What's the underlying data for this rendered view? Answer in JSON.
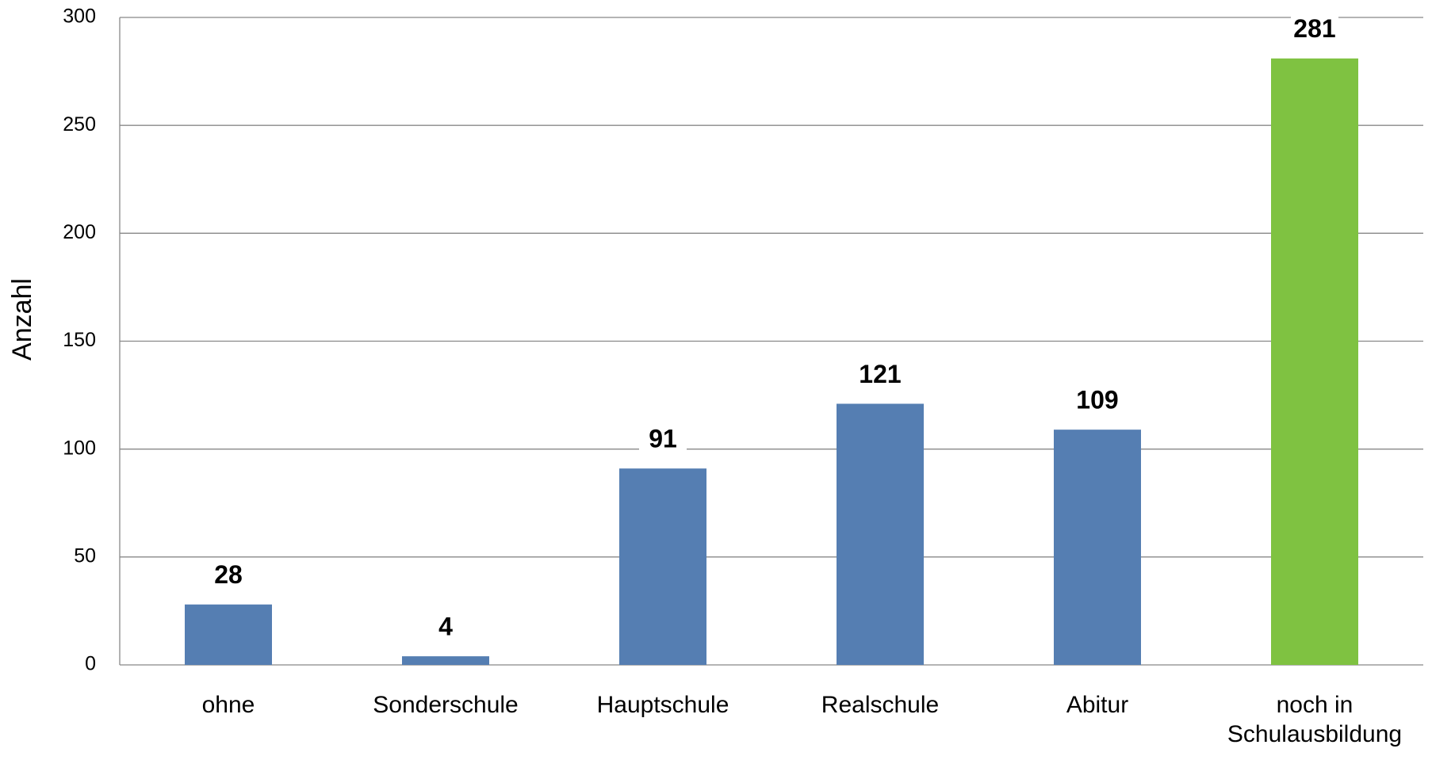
{
  "chart_data": {
    "type": "bar",
    "ylabel": "Anzahl",
    "categories": [
      "ohne",
      "Sonderschule",
      "Hauptschule",
      "Realschule",
      "Abitur",
      "noch in\nSchulausbildung"
    ],
    "values": [
      28,
      4,
      91,
      121,
      109,
      281
    ],
    "colors": [
      "#557eb2",
      "#557eb2",
      "#557eb2",
      "#557eb2",
      "#557eb2",
      "#7fc241"
    ],
    "ylim": [
      0,
      300
    ],
    "yticks": [
      0,
      50,
      100,
      150,
      200,
      250,
      300
    ],
    "grid": true
  }
}
